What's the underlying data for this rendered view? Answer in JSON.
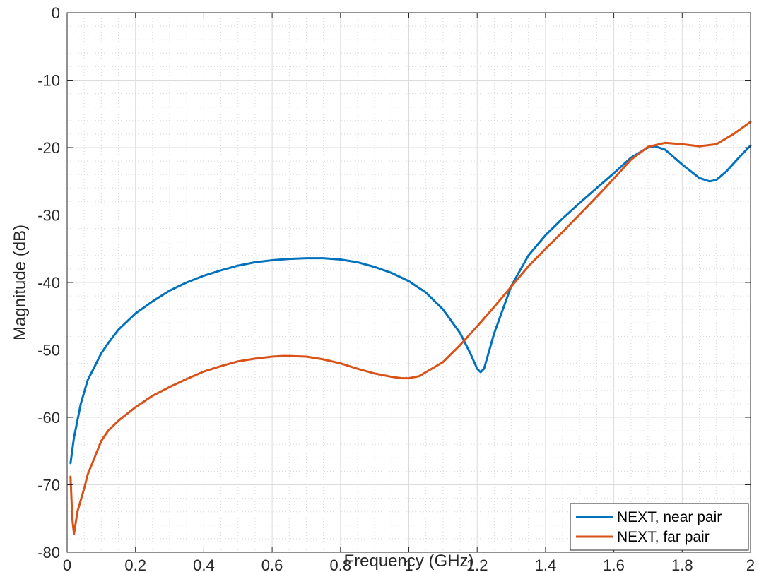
{
  "chart_data": {
    "type": "line",
    "title": "",
    "xlabel": "Frequency (GHz)",
    "ylabel": "Magnitude (dB)",
    "xlim": [
      0,
      2
    ],
    "ylim": [
      -80,
      0
    ],
    "xticks": [
      0,
      0.2,
      0.4,
      0.6,
      0.8,
      1,
      1.2,
      1.4,
      1.6,
      1.8,
      2
    ],
    "xtick_labels": [
      "0",
      "0.2",
      "0.4",
      "0.6",
      "0.8",
      "1",
      "1.2",
      "1.4",
      "1.6",
      "1.8",
      "2"
    ],
    "yticks": [
      0,
      -10,
      -20,
      -30,
      -40,
      -50,
      -60,
      -70,
      -80
    ],
    "ytick_labels": [
      "0",
      "-10",
      "-20",
      "-30",
      "-40",
      "-50",
      "-60",
      "-70",
      "-80"
    ],
    "grid": true,
    "minor_grid": true,
    "legend_position": "bottom-right",
    "series": [
      {
        "name": "NEXT, near pair",
        "color": "#0072BD",
        "x": [
          0.01,
          0.02,
          0.04,
          0.06,
          0.08,
          0.1,
          0.12,
          0.15,
          0.2,
          0.25,
          0.3,
          0.35,
          0.4,
          0.45,
          0.5,
          0.55,
          0.6,
          0.65,
          0.7,
          0.75,
          0.8,
          0.85,
          0.9,
          0.95,
          1.0,
          1.05,
          1.1,
          1.15,
          1.18,
          1.2,
          1.21,
          1.22,
          1.25,
          1.3,
          1.35,
          1.4,
          1.45,
          1.5,
          1.55,
          1.6,
          1.65,
          1.7,
          1.72,
          1.75,
          1.8,
          1.85,
          1.88,
          1.9,
          1.93,
          1.96,
          2.0
        ],
        "y": [
          -66.8,
          -63.0,
          -58.0,
          -54.5,
          -52.5,
          -50.5,
          -49.0,
          -47.0,
          -44.6,
          -42.8,
          -41.2,
          -40.0,
          -39.0,
          -38.2,
          -37.5,
          -37.0,
          -36.7,
          -36.5,
          -36.4,
          -36.4,
          -36.6,
          -37.0,
          -37.7,
          -38.6,
          -39.8,
          -41.5,
          -44.0,
          -47.5,
          -50.5,
          -52.8,
          -53.3,
          -52.8,
          -47.5,
          -40.5,
          -36.0,
          -33.0,
          -30.5,
          -28.2,
          -26.0,
          -23.8,
          -21.5,
          -20.0,
          -19.8,
          -20.3,
          -22.5,
          -24.5,
          -25.0,
          -24.8,
          -23.5,
          -21.8,
          -19.7
        ]
      },
      {
        "name": "NEXT, far pair",
        "color": "#D95319",
        "x": [
          0.01,
          0.015,
          0.02,
          0.03,
          0.05,
          0.06,
          0.08,
          0.1,
          0.12,
          0.15,
          0.2,
          0.25,
          0.3,
          0.35,
          0.4,
          0.45,
          0.5,
          0.55,
          0.6,
          0.63,
          0.65,
          0.7,
          0.75,
          0.8,
          0.85,
          0.9,
          0.95,
          0.98,
          1.0,
          1.03,
          1.05,
          1.1,
          1.15,
          1.2,
          1.25,
          1.3,
          1.35,
          1.4,
          1.45,
          1.5,
          1.55,
          1.6,
          1.65,
          1.7,
          1.75,
          1.8,
          1.85,
          1.9,
          1.95,
          2.0
        ],
        "y": [
          -68.8,
          -75.0,
          -77.3,
          -74.0,
          -70.5,
          -68.5,
          -66.0,
          -63.5,
          -62.0,
          -60.5,
          -58.5,
          -56.8,
          -55.5,
          -54.3,
          -53.2,
          -52.4,
          -51.7,
          -51.3,
          -51.0,
          -50.9,
          -50.9,
          -51.0,
          -51.4,
          -52.0,
          -52.8,
          -53.5,
          -54.0,
          -54.2,
          -54.2,
          -53.9,
          -53.3,
          -51.8,
          -49.3,
          -46.5,
          -43.6,
          -40.6,
          -37.6,
          -35.0,
          -32.5,
          -29.9,
          -27.3,
          -24.6,
          -21.8,
          -19.9,
          -19.3,
          -19.5,
          -19.8,
          -19.5,
          -18.0,
          -16.2
        ]
      }
    ]
  }
}
